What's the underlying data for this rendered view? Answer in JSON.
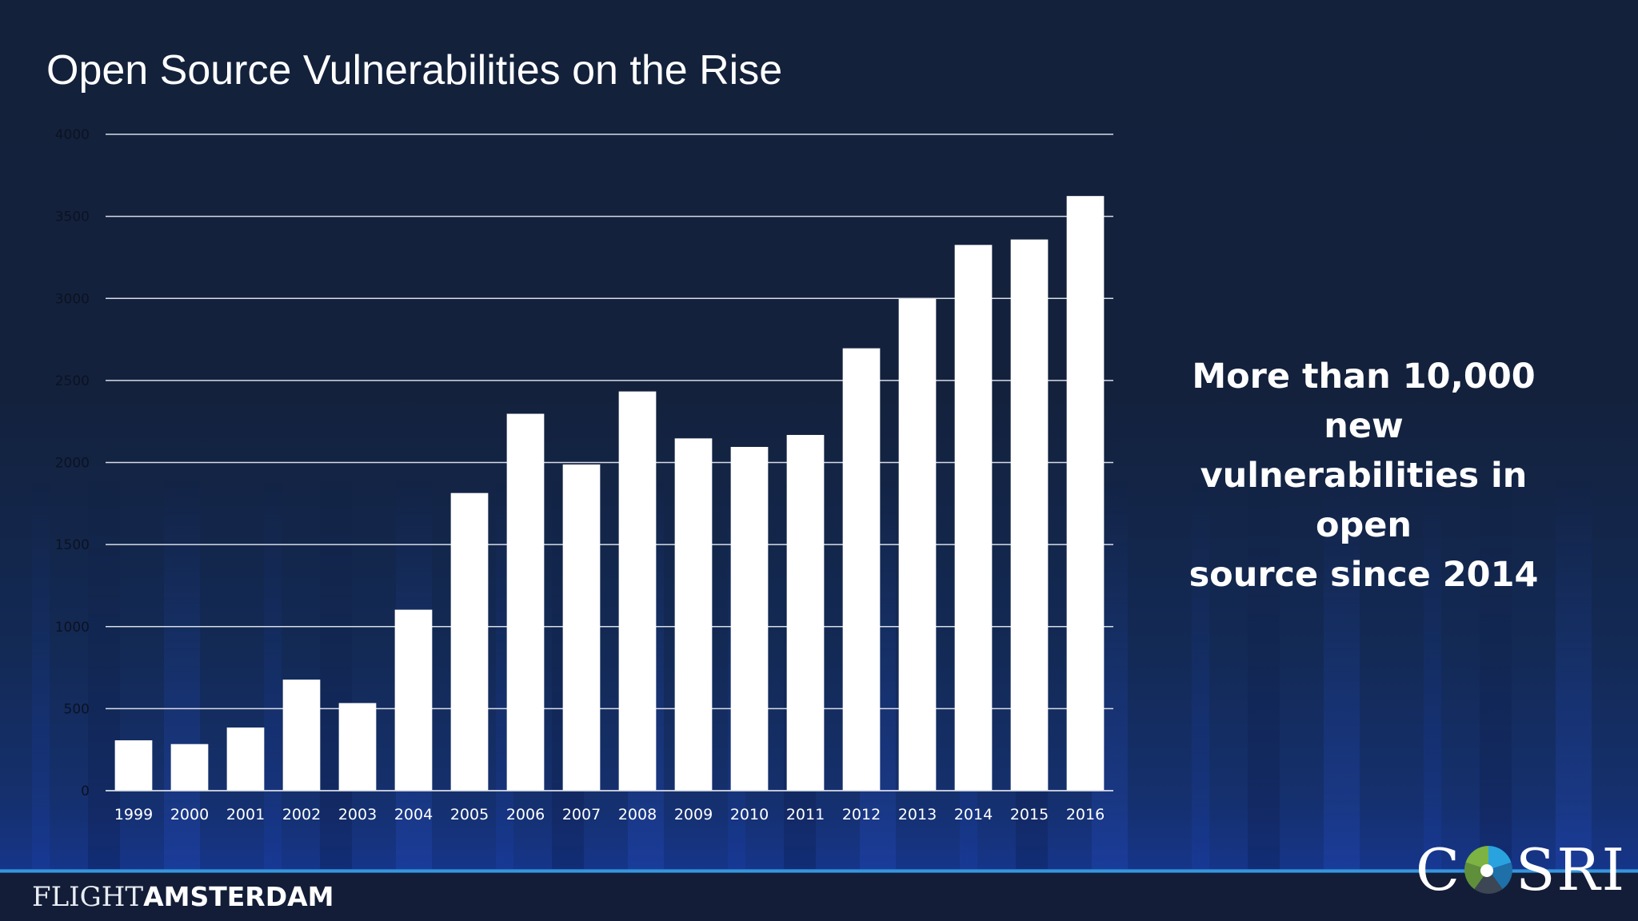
{
  "slide": {
    "title": "Open Source Vulnerabilities on the Rise",
    "callout": [
      "More than 10,000 new",
      "vulnerabilities in open",
      "source since 2014"
    ],
    "footer_left": {
      "light": "FLIGHT",
      "bold": "AMSTERDAM"
    },
    "footer_right": {
      "prefix": "C",
      "suffix": "SRI",
      "logo_icon": "cosri-globe-icon"
    }
  },
  "colors": {
    "background": "#13213b",
    "bar": "#ffffff",
    "gridline": "#d8dde6",
    "tick_label_y": "#0c1222",
    "tick_label_x": "#ffffff",
    "accent_line": "#3d9ae0",
    "logo_green": "#7cb342",
    "logo_blue": "#29a3e0",
    "logo_darkblue": "#1f6fa8",
    "logo_grey": "#3c4654"
  },
  "chart_data": {
    "type": "bar",
    "title": "Open Source Vulnerabilities on the Rise",
    "xlabel": "",
    "ylabel": "",
    "categories": [
      "1999",
      "2000",
      "2001",
      "2002",
      "2003",
      "2004",
      "2005",
      "2006",
      "2007",
      "2008",
      "2009",
      "2010",
      "2011",
      "2012",
      "2013",
      "2014",
      "2015",
      "2016"
    ],
    "values": [
      307,
      284,
      385,
      677,
      534,
      1103,
      1814,
      2297,
      1988,
      2433,
      2147,
      2095,
      2168,
      2696,
      2998,
      3326,
      3359,
      3624
    ],
    "ylim": [
      0,
      4000
    ],
    "yticks": [
      0,
      500,
      1000,
      1500,
      2000,
      2500,
      3000,
      3500,
      4000
    ],
    "grid": true,
    "legend": "none"
  }
}
